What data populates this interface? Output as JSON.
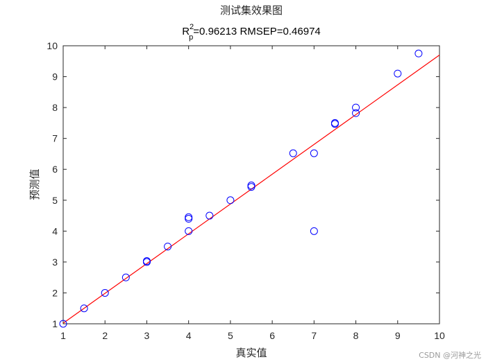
{
  "chart_data": {
    "type": "scatter",
    "title": "测试集效果图",
    "subtitle": {
      "prefix": "R",
      "superscript": "2",
      "subscript": "p",
      "rest": "=0.96213  RMSEP=0.46974"
    },
    "xlabel": "真实值",
    "ylabel": "预测值",
    "xlim": [
      1,
      10
    ],
    "ylim": [
      1,
      10
    ],
    "xticks": [
      "1",
      "2",
      "3",
      "4",
      "5",
      "6",
      "7",
      "8",
      "9",
      "10"
    ],
    "yticks": [
      "1",
      "2",
      "3",
      "4",
      "5",
      "6",
      "7",
      "8",
      "9",
      "10"
    ],
    "grid": false,
    "marker_color": "#0000ff",
    "line_color": "#ff0000",
    "points": [
      {
        "x": 1.0,
        "y": 1.0
      },
      {
        "x": 1.5,
        "y": 1.5
      },
      {
        "x": 2.0,
        "y": 2.0
      },
      {
        "x": 2.5,
        "y": 2.5
      },
      {
        "x": 3.0,
        "y": 3.0
      },
      {
        "x": 3.0,
        "y": 3.03
      },
      {
        "x": 3.5,
        "y": 3.5
      },
      {
        "x": 4.0,
        "y": 4.0
      },
      {
        "x": 4.0,
        "y": 4.4
      },
      {
        "x": 4.0,
        "y": 4.45
      },
      {
        "x": 4.5,
        "y": 4.5
      },
      {
        "x": 5.0,
        "y": 5.0
      },
      {
        "x": 5.5,
        "y": 5.43
      },
      {
        "x": 5.5,
        "y": 5.48
      },
      {
        "x": 6.5,
        "y": 6.52
      },
      {
        "x": 7.0,
        "y": 6.52
      },
      {
        "x": 7.0,
        "y": 4.0
      },
      {
        "x": 7.5,
        "y": 7.47
      },
      {
        "x": 7.5,
        "y": 7.5
      },
      {
        "x": 8.0,
        "y": 7.82
      },
      {
        "x": 8.0,
        "y": 8.0
      },
      {
        "x": 9.0,
        "y": 9.1
      },
      {
        "x": 9.5,
        "y": 9.75
      }
    ],
    "fit_line": {
      "x": [
        1,
        10
      ],
      "y": [
        1.02,
        9.7
      ]
    }
  },
  "watermark": "CSDN @河神之光"
}
